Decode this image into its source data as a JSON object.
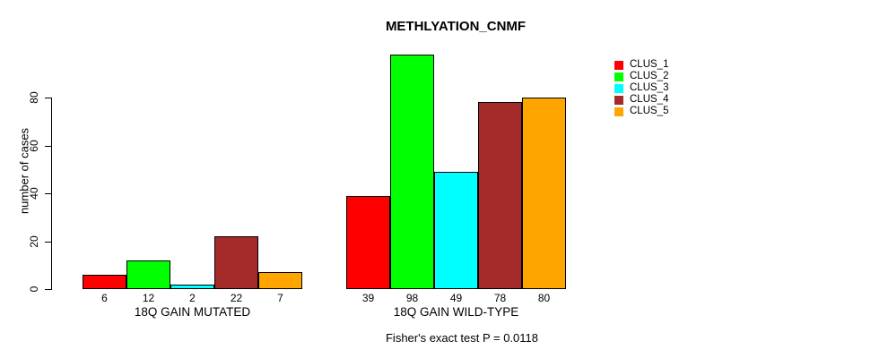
{
  "chart_data": {
    "type": "bar",
    "title": "METHLYATION_CNMF",
    "ylabel": "number of cases",
    "xlabel": "",
    "yticks": [
      0,
      20,
      40,
      60,
      80
    ],
    "ylim": [
      0,
      80
    ],
    "grid": false,
    "legend_position": "top-right",
    "categories": [
      "18Q GAIN MUTATED",
      "18Q GAIN WILD-TYPE"
    ],
    "series": [
      {
        "name": "CLUS_1",
        "color": "#ff0000",
        "values": [
          6,
          39
        ]
      },
      {
        "name": "CLUS_2",
        "color": "#00ff00",
        "values": [
          12,
          98
        ]
      },
      {
        "name": "CLUS_3",
        "color": "#00ffff",
        "values": [
          2,
          49
        ]
      },
      {
        "name": "CLUS_4",
        "color": "#a52a2a",
        "values": [
          22,
          78
        ]
      },
      {
        "name": "CLUS_5",
        "color": "#ffa500",
        "values": [
          7,
          80
        ]
      }
    ],
    "bar_value_labels": [
      [
        6,
        12,
        2,
        22,
        7
      ],
      [
        39,
        98,
        49,
        78,
        80
      ]
    ],
    "annotation": "Fisher's exact test P = 0.0118"
  }
}
